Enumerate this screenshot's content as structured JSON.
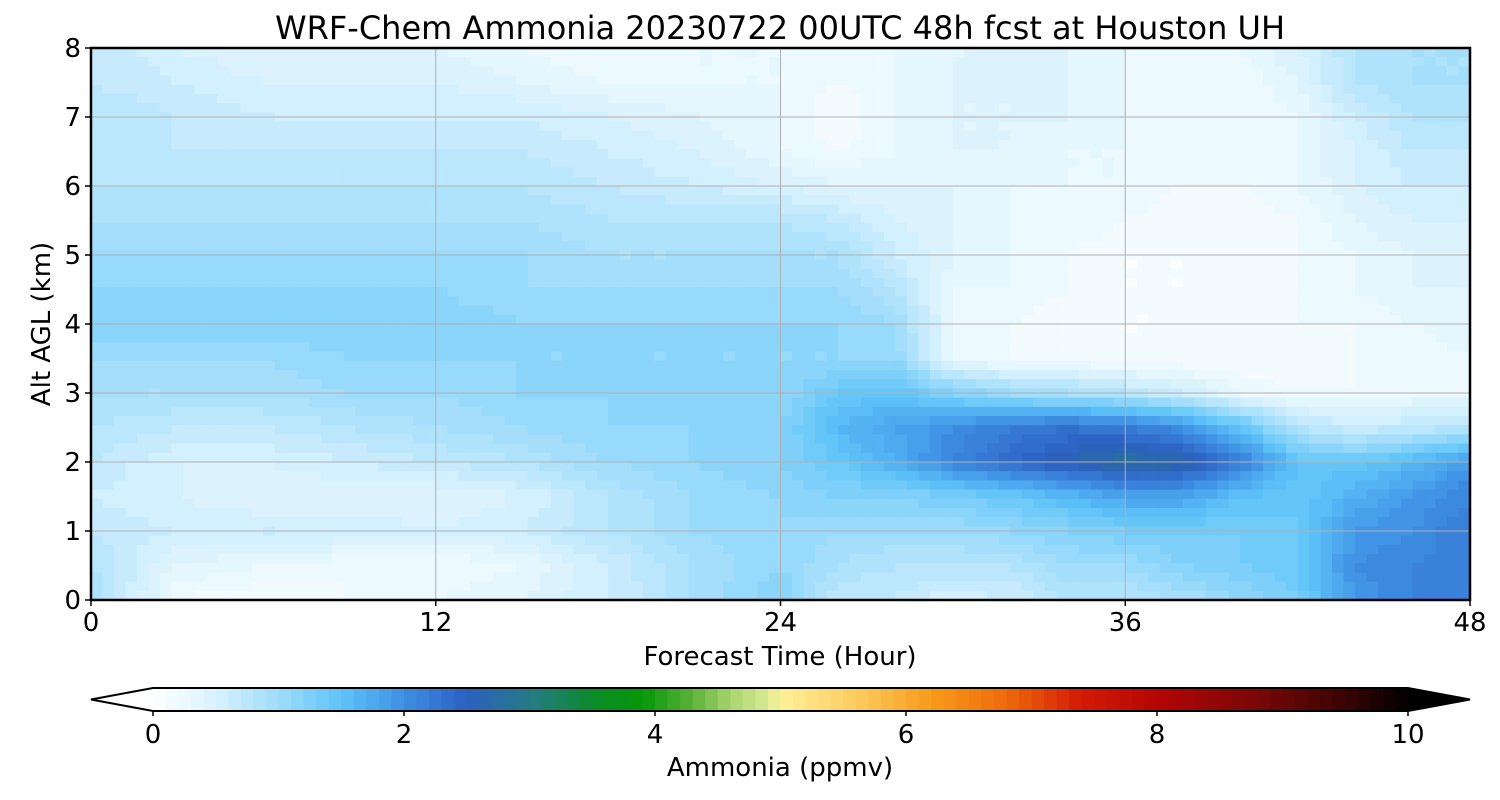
{
  "chart_data": {
    "type": "heatmap",
    "title": "WRF-Chem Ammonia  20230722 00UTC 48h fcst at Houston UH",
    "xlabel": "Forecast Time (Hour)",
    "ylabel": "Alt AGL (km)",
    "xlim": [
      0,
      48
    ],
    "ylim": [
      0,
      8
    ],
    "x_ticks": [
      0,
      12,
      24,
      36,
      48
    ],
    "y_ticks": [
      0,
      1,
      2,
      3,
      4,
      5,
      6,
      7,
      8
    ],
    "x_tick_labels": [
      "0",
      "12",
      "24",
      "36",
      "48"
    ],
    "y_tick_labels": [
      "0",
      "1",
      "2",
      "3",
      "4",
      "5",
      "6",
      "7",
      "8"
    ],
    "grid": true,
    "x": [
      0,
      3,
      6,
      9,
      12,
      15,
      18,
      21,
      24,
      26,
      28,
      30,
      32,
      34,
      36,
      38,
      40,
      42,
      44,
      46,
      48
    ],
    "y": [
      0,
      0.5,
      1,
      1.5,
      2,
      2.5,
      3,
      3.5,
      4,
      4.5,
      5,
      5.5,
      6,
      6.5,
      7,
      7.5,
      8
    ],
    "z": [
      [
        0.9,
        0.2,
        0.1,
        0.2,
        0.3,
        0.4,
        0.6,
        0.9,
        1.2,
        0.7,
        0.7,
        0.5,
        0.6,
        0.8,
        0.8,
        0.9,
        1.1,
        1.3,
        1.9,
        2.1,
        2.2
      ],
      [
        0.8,
        0.4,
        0.3,
        0.2,
        0.2,
        0.3,
        0.6,
        0.9,
        1.1,
        0.9,
        0.8,
        0.8,
        0.8,
        1.0,
        1.0,
        1.2,
        1.3,
        1.4,
        2.0,
        2.1,
        2.2
      ],
      [
        0.7,
        0.6,
        0.6,
        0.6,
        0.5,
        0.6,
        0.8,
        1.0,
        1.1,
        1.0,
        1.0,
        1.0,
        1.1,
        1.2,
        1.3,
        1.3,
        1.3,
        1.4,
        1.9,
        2.0,
        2.2
      ],
      [
        0.6,
        0.5,
        0.4,
        0.4,
        0.4,
        0.5,
        0.8,
        1.0,
        1.1,
        1.2,
        1.2,
        1.3,
        1.4,
        1.6,
        1.8,
        1.8,
        1.5,
        1.4,
        1.7,
        1.9,
        2.1
      ],
      [
        0.7,
        0.5,
        0.5,
        0.6,
        0.7,
        0.8,
        1.0,
        1.1,
        1.2,
        1.4,
        1.7,
        2.1,
        2.4,
        2.6,
        2.8,
        2.7,
        2.2,
        1.5,
        1.4,
        1.6,
        1.9
      ],
      [
        0.8,
        0.7,
        0.7,
        0.8,
        0.9,
        1.0,
        1.1,
        1.1,
        1.2,
        1.6,
        1.8,
        2.0,
        2.2,
        2.3,
        2.2,
        2.0,
        1.5,
        0.8,
        0.6,
        0.7,
        0.8
      ],
      [
        0.9,
        0.9,
        0.9,
        1.0,
        1.0,
        1.1,
        1.1,
        1.1,
        1.1,
        1.4,
        1.5,
        1.2,
        1.0,
        0.9,
        0.8,
        0.6,
        0.3,
        0.2,
        0.2,
        0.3,
        0.3
      ],
      [
        1.0,
        1.0,
        1.0,
        1.1,
        1.1,
        1.1,
        1.1,
        1.1,
        1.1,
        1.1,
        1.1,
        0.3,
        0.2,
        0.2,
        0.1,
        0.1,
        0.1,
        0.1,
        0.2,
        0.2,
        0.3
      ],
      [
        1.2,
        1.2,
        1.2,
        1.2,
        1.2,
        1.1,
        1.1,
        1.1,
        1.1,
        1.1,
        1.0,
        0.3,
        0.2,
        0.1,
        0.1,
        0.1,
        0.1,
        0.2,
        0.2,
        0.3,
        0.4
      ],
      [
        1.1,
        1.1,
        1.1,
        1.1,
        1.1,
        1.0,
        1.0,
        1.0,
        1.0,
        1.0,
        0.8,
        0.3,
        0.3,
        0.2,
        0.1,
        0.1,
        0.1,
        0.2,
        0.3,
        0.4,
        0.4
      ],
      [
        1.0,
        1.0,
        1.0,
        1.0,
        1.0,
        1.0,
        0.9,
        0.9,
        0.9,
        0.9,
        0.6,
        0.4,
        0.3,
        0.2,
        0.1,
        0.1,
        0.1,
        0.2,
        0.3,
        0.4,
        0.5
      ],
      [
        0.9,
        0.9,
        0.9,
        0.9,
        0.9,
        0.9,
        0.8,
        0.8,
        0.8,
        0.7,
        0.5,
        0.4,
        0.3,
        0.3,
        0.2,
        0.1,
        0.1,
        0.2,
        0.4,
        0.5,
        0.5
      ],
      [
        0.8,
        0.8,
        0.8,
        0.8,
        0.8,
        0.8,
        0.7,
        0.6,
        0.5,
        0.4,
        0.4,
        0.4,
        0.3,
        0.3,
        0.3,
        0.2,
        0.2,
        0.3,
        0.5,
        0.6,
        0.6
      ],
      [
        0.8,
        0.7,
        0.7,
        0.7,
        0.7,
        0.7,
        0.6,
        0.5,
        0.3,
        0.2,
        0.3,
        0.4,
        0.4,
        0.3,
        0.3,
        0.2,
        0.2,
        0.3,
        0.5,
        0.7,
        0.7
      ],
      [
        0.8,
        0.7,
        0.6,
        0.6,
        0.6,
        0.6,
        0.5,
        0.4,
        0.3,
        0.1,
        0.3,
        0.4,
        0.4,
        0.4,
        0.3,
        0.2,
        0.2,
        0.3,
        0.6,
        0.8,
        0.8
      ],
      [
        0.7,
        0.6,
        0.5,
        0.5,
        0.5,
        0.4,
        0.3,
        0.3,
        0.3,
        0.2,
        0.3,
        0.4,
        0.4,
        0.4,
        0.3,
        0.2,
        0.2,
        0.4,
        0.8,
        0.9,
        0.9
      ],
      [
        0.7,
        0.5,
        0.4,
        0.4,
        0.4,
        0.3,
        0.2,
        0.3,
        0.3,
        0.3,
        0.3,
        0.4,
        0.4,
        0.4,
        0.3,
        0.2,
        0.3,
        0.5,
        0.8,
        0.9,
        0.9
      ]
    ],
    "colorbar": {
      "label": "Ammonia  (ppmv)",
      "ticks": [
        0,
        2,
        4,
        6,
        8,
        10
      ],
      "tick_labels": [
        "0",
        "2",
        "4",
        "6",
        "8",
        "10"
      ],
      "range": [
        0,
        10
      ],
      "levels": 100,
      "extend": "both",
      "under_color": "#ffffff",
      "over_color": "#000000",
      "colormap_stops": [
        {
          "value": 0.0,
          "color": "#ffffff"
        },
        {
          "value": 0.5,
          "color": "#d8f2fd"
        },
        {
          "value": 1.0,
          "color": "#9edcfb"
        },
        {
          "value": 1.5,
          "color": "#5ec3f8"
        },
        {
          "value": 2.0,
          "color": "#3e8fe4"
        },
        {
          "value": 2.5,
          "color": "#2c5fc0"
        },
        {
          "value": 3.0,
          "color": "#257a86"
        },
        {
          "value": 3.5,
          "color": "#0c8a2a"
        },
        {
          "value": 3.9,
          "color": "#069708"
        },
        {
          "value": 4.3,
          "color": "#5cb23a"
        },
        {
          "value": 4.6,
          "color": "#a8d46c"
        },
        {
          "value": 4.9,
          "color": "#d8eb93"
        },
        {
          "value": 5.0,
          "color": "#fff199"
        },
        {
          "value": 5.6,
          "color": "#fccc60"
        },
        {
          "value": 6.2,
          "color": "#f89b1a"
        },
        {
          "value": 6.8,
          "color": "#ef6a0c"
        },
        {
          "value": 7.4,
          "color": "#d21a05"
        },
        {
          "value": 8.0,
          "color": "#b50505"
        },
        {
          "value": 8.8,
          "color": "#790707"
        },
        {
          "value": 9.5,
          "color": "#3a0404"
        },
        {
          "value": 10.0,
          "color": "#000000"
        }
      ]
    }
  }
}
